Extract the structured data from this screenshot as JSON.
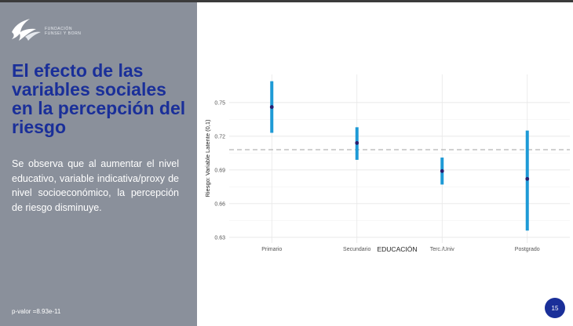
{
  "slide": {
    "logo_text_line1": "FUNDACIÓN",
    "logo_text_line2": "FUNSEI Y BORN",
    "title": "El efecto de las variables sociales en la percepción del riesgo",
    "body": "Se observa que al aumentar el nivel educativo, variable indicativa/proxy de nivel socioeconómico, la percepción de riesgo disminuye.",
    "footnote": "p-valor =8.93e-11",
    "page_number": "15",
    "accent_color": "#1a2f99",
    "panel_color": "#8a909b"
  },
  "chart_data": {
    "type": "errorbar",
    "xlabel": "EDUCACIÓN",
    "ylabel": "Riesgo: Variable Latente (0,1)",
    "categories": [
      "Primario",
      "Secundario",
      "Terc./Univ",
      "Postgrado"
    ],
    "values": [
      0.746,
      0.714,
      0.689,
      0.682
    ],
    "lower": [
      0.723,
      0.699,
      0.677,
      0.636
    ],
    "upper": [
      0.769,
      0.728,
      0.701,
      0.725
    ],
    "reference_line": 0.708,
    "ylim": [
      0.625,
      0.775
    ],
    "yticks": [
      0.63,
      0.66,
      0.69,
      0.72,
      0.75
    ],
    "ytick_labels": [
      "0.63",
      "0.66",
      "0.69",
      "0.72",
      "0.75"
    ],
    "grid": true,
    "colors": {
      "bar": "#1e9ad6",
      "point": "#2b1d6e",
      "reference": "#b3b3b3"
    }
  }
}
